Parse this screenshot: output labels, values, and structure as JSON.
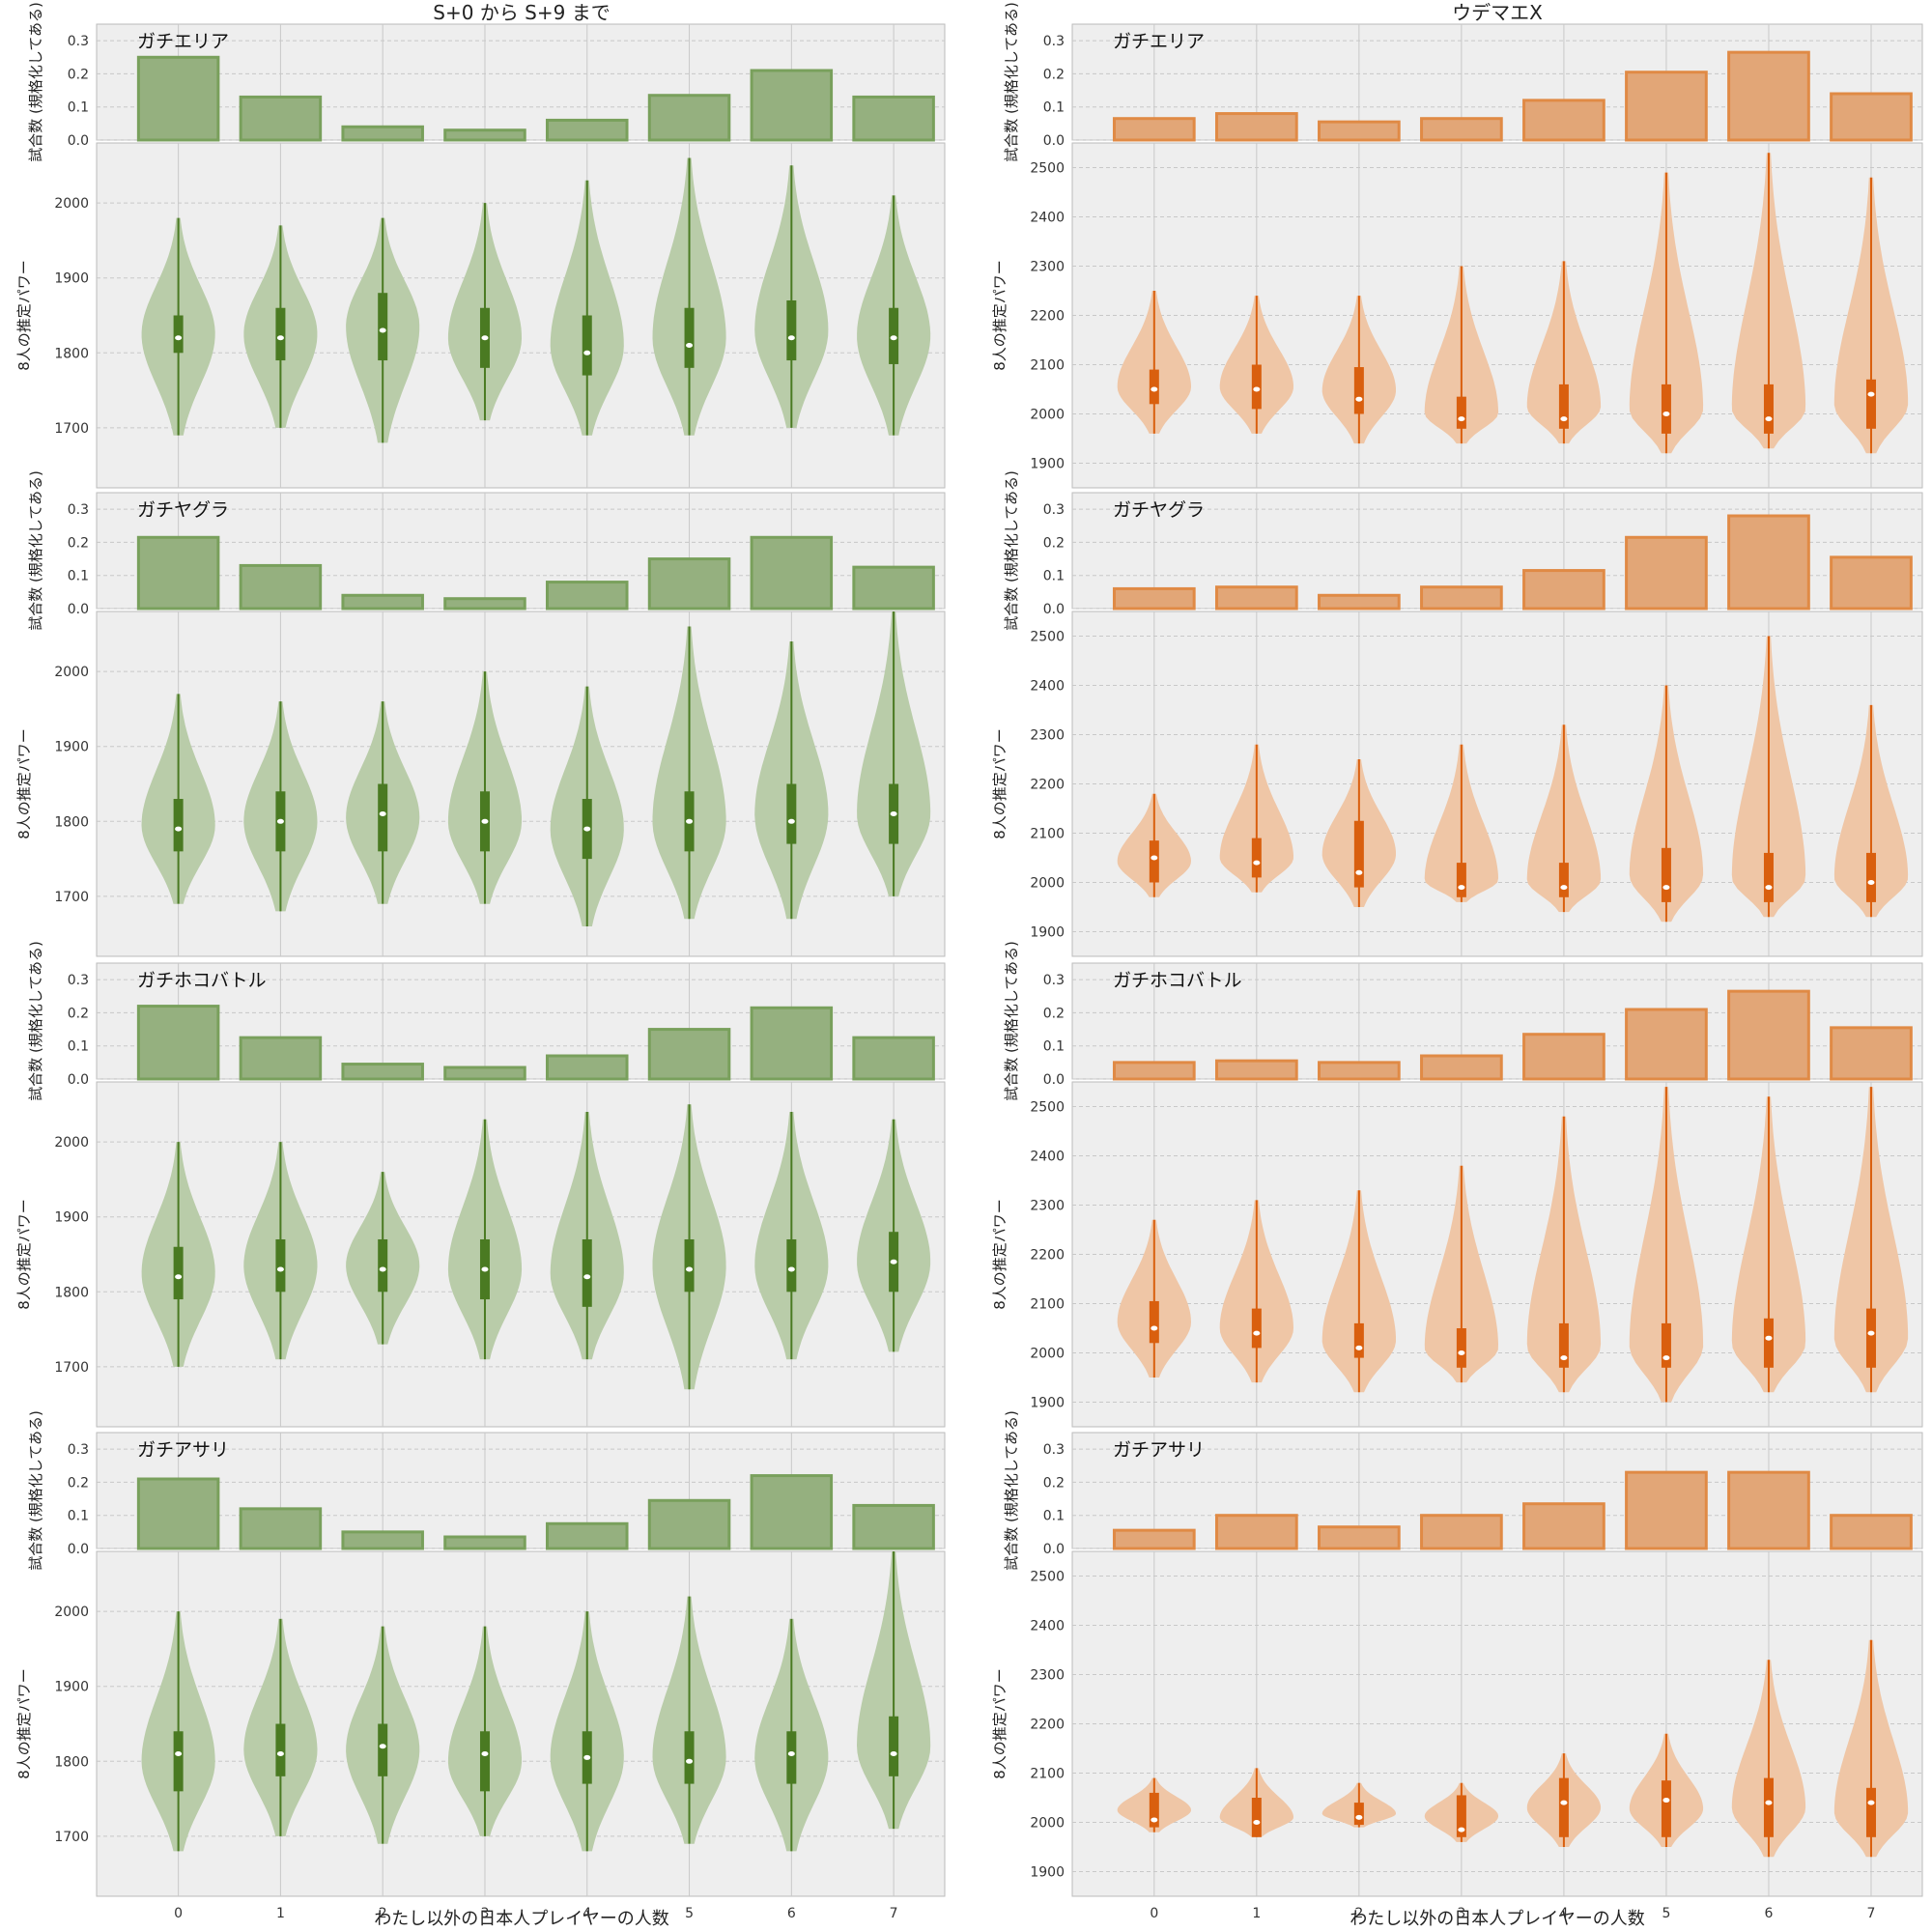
{
  "column_titles": [
    "S+0 から S+9 まで",
    "ウデマエX"
  ],
  "xlabel": "わたし以外の日本人プレイヤーの人数",
  "bar_ylabel": "試合数 (規格化してある)",
  "violin_ylabel": "8人の推定パワー",
  "colors": {
    "green_bar": "#95b07f",
    "green_bar_edge": "#79a05c",
    "green_violin": "#b9cca9",
    "green_dark": "#4a7a22",
    "orange_bar": "#e2a677",
    "orange_bar_edge": "#e08a45",
    "orange_violin": "#efc6a6",
    "orange_dark": "#d95f0e",
    "panel_bg": "#eeeeee",
    "grid": "#c8c8c8"
  },
  "chart_data": [
    {
      "column": "S+0 から S+9 まで",
      "mode": "ガチエリア",
      "type": "bar+violin",
      "categories": [
        0,
        1,
        2,
        3,
        4,
        5,
        6,
        7
      ],
      "bar_values": [
        0.25,
        0.13,
        0.04,
        0.03,
        0.06,
        0.135,
        0.21,
        0.13
      ],
      "bar_ylim": [
        0,
        0.35
      ],
      "bar_yticks": [
        0.0,
        0.1,
        0.2,
        0.3
      ],
      "violin_ylim": [
        1620,
        2080
      ],
      "violin_yticks": [
        1700,
        1800,
        1900,
        2000
      ],
      "violins": [
        {
          "min": 1690,
          "q1": 1800,
          "median": 1820,
          "q3": 1850,
          "max": 1980
        },
        {
          "min": 1700,
          "q1": 1790,
          "median": 1820,
          "q3": 1860,
          "max": 1970
        },
        {
          "min": 1680,
          "q1": 1790,
          "median": 1830,
          "q3": 1880,
          "max": 1980
        },
        {
          "min": 1710,
          "q1": 1780,
          "median": 1820,
          "q3": 1860,
          "max": 2000
        },
        {
          "min": 1690,
          "q1": 1770,
          "median": 1800,
          "q3": 1850,
          "max": 2030
        },
        {
          "min": 1690,
          "q1": 1780,
          "median": 1810,
          "q3": 1860,
          "max": 2060
        },
        {
          "min": 1700,
          "q1": 1790,
          "median": 1820,
          "q3": 1870,
          "max": 2050
        },
        {
          "min": 1690,
          "q1": 1785,
          "median": 1820,
          "q3": 1860,
          "max": 2010
        }
      ]
    },
    {
      "column": "ウデマエX",
      "mode": "ガチエリア",
      "type": "bar+violin",
      "categories": [
        0,
        1,
        2,
        3,
        4,
        5,
        6,
        7
      ],
      "bar_values": [
        0.065,
        0.08,
        0.055,
        0.065,
        0.12,
        0.205,
        0.265,
        0.14
      ],
      "bar_ylim": [
        0,
        0.35
      ],
      "bar_yticks": [
        0.0,
        0.1,
        0.2,
        0.3
      ],
      "violin_ylim": [
        1850,
        2550
      ],
      "violin_yticks": [
        1900,
        2000,
        2100,
        2200,
        2300,
        2400,
        2500
      ],
      "violins": [
        {
          "min": 1960,
          "q1": 2020,
          "median": 2050,
          "q3": 2090,
          "max": 2250
        },
        {
          "min": 1960,
          "q1": 2010,
          "median": 2050,
          "q3": 2100,
          "max": 2240
        },
        {
          "min": 1940,
          "q1": 2000,
          "median": 2030,
          "q3": 2095,
          "max": 2240
        },
        {
          "min": 1940,
          "q1": 1970,
          "median": 1990,
          "q3": 2035,
          "max": 2300
        },
        {
          "min": 1940,
          "q1": 1970,
          "median": 1990,
          "q3": 2060,
          "max": 2310
        },
        {
          "min": 1920,
          "q1": 1960,
          "median": 2000,
          "q3": 2060,
          "max": 2490
        },
        {
          "min": 1930,
          "q1": 1960,
          "median": 1990,
          "q3": 2060,
          "max": 2530
        },
        {
          "min": 1920,
          "q1": 1970,
          "median": 2040,
          "q3": 2070,
          "max": 2480
        }
      ]
    },
    {
      "column": "S+0 から S+9 まで",
      "mode": "ガチヤグラ",
      "type": "bar+violin",
      "categories": [
        0,
        1,
        2,
        3,
        4,
        5,
        6,
        7
      ],
      "bar_values": [
        0.215,
        0.13,
        0.04,
        0.03,
        0.08,
        0.15,
        0.215,
        0.125
      ],
      "bar_ylim": [
        0,
        0.35
      ],
      "bar_yticks": [
        0.0,
        0.1,
        0.2,
        0.3
      ],
      "violin_ylim": [
        1620,
        2080
      ],
      "violin_yticks": [
        1700,
        1800,
        1900,
        2000
      ],
      "violins": [
        {
          "min": 1690,
          "q1": 1760,
          "median": 1790,
          "q3": 1830,
          "max": 1970
        },
        {
          "min": 1680,
          "q1": 1760,
          "median": 1800,
          "q3": 1840,
          "max": 1960
        },
        {
          "min": 1690,
          "q1": 1760,
          "median": 1810,
          "q3": 1850,
          "max": 1960
        },
        {
          "min": 1690,
          "q1": 1760,
          "median": 1800,
          "q3": 1840,
          "max": 2000
        },
        {
          "min": 1660,
          "q1": 1750,
          "median": 1790,
          "q3": 1830,
          "max": 1980
        },
        {
          "min": 1670,
          "q1": 1760,
          "median": 1800,
          "q3": 1840,
          "max": 2060
        },
        {
          "min": 1670,
          "q1": 1770,
          "median": 1800,
          "q3": 1850,
          "max": 2040
        },
        {
          "min": 1700,
          "q1": 1770,
          "median": 1810,
          "q3": 1850,
          "max": 2080
        }
      ]
    },
    {
      "column": "ウデマエX",
      "mode": "ガチヤグラ",
      "type": "bar+violin",
      "categories": [
        0,
        1,
        2,
        3,
        4,
        5,
        6,
        7
      ],
      "bar_values": [
        0.06,
        0.065,
        0.04,
        0.065,
        0.115,
        0.215,
        0.28,
        0.155
      ],
      "bar_ylim": [
        0,
        0.35
      ],
      "bar_yticks": [
        0.0,
        0.1,
        0.2,
        0.3
      ],
      "violin_ylim": [
        1850,
        2550
      ],
      "violin_yticks": [
        1900,
        2000,
        2100,
        2200,
        2300,
        2400,
        2500
      ],
      "violins": [
        {
          "min": 1970,
          "q1": 2000,
          "median": 2050,
          "q3": 2085,
          "max": 2180
        },
        {
          "min": 1980,
          "q1": 2010,
          "median": 2040,
          "q3": 2090,
          "max": 2280
        },
        {
          "min": 1950,
          "q1": 1990,
          "median": 2020,
          "q3": 2125,
          "max": 2250
        },
        {
          "min": 1960,
          "q1": 1970,
          "median": 1990,
          "q3": 2040,
          "max": 2280
        },
        {
          "min": 1940,
          "q1": 1970,
          "median": 1990,
          "q3": 2040,
          "max": 2320
        },
        {
          "min": 1920,
          "q1": 1960,
          "median": 1990,
          "q3": 2070,
          "max": 2400
        },
        {
          "min": 1930,
          "q1": 1960,
          "median": 1990,
          "q3": 2060,
          "max": 2500
        },
        {
          "min": 1930,
          "q1": 1960,
          "median": 2000,
          "q3": 2060,
          "max": 2360
        }
      ]
    },
    {
      "column": "S+0 から S+9 まで",
      "mode": "ガチホコバトル",
      "type": "bar+violin",
      "categories": [
        0,
        1,
        2,
        3,
        4,
        5,
        6,
        7
      ],
      "bar_values": [
        0.22,
        0.125,
        0.045,
        0.035,
        0.07,
        0.15,
        0.215,
        0.125
      ],
      "bar_ylim": [
        0,
        0.35
      ],
      "bar_yticks": [
        0.0,
        0.1,
        0.2,
        0.3
      ],
      "violin_ylim": [
        1620,
        2080
      ],
      "violin_yticks": [
        1700,
        1800,
        1900,
        2000
      ],
      "violins": [
        {
          "min": 1700,
          "q1": 1790,
          "median": 1820,
          "q3": 1860,
          "max": 2000
        },
        {
          "min": 1710,
          "q1": 1800,
          "median": 1830,
          "q3": 1870,
          "max": 2000
        },
        {
          "min": 1730,
          "q1": 1800,
          "median": 1830,
          "q3": 1870,
          "max": 1960
        },
        {
          "min": 1710,
          "q1": 1790,
          "median": 1830,
          "q3": 1870,
          "max": 2030
        },
        {
          "min": 1710,
          "q1": 1780,
          "median": 1820,
          "q3": 1870,
          "max": 2040
        },
        {
          "min": 1670,
          "q1": 1800,
          "median": 1830,
          "q3": 1870,
          "max": 2050
        },
        {
          "min": 1710,
          "q1": 1800,
          "median": 1830,
          "q3": 1870,
          "max": 2040
        },
        {
          "min": 1720,
          "q1": 1800,
          "median": 1840,
          "q3": 1880,
          "max": 2030
        }
      ]
    },
    {
      "column": "ウデマエX",
      "mode": "ガチホコバトル",
      "type": "bar+violin",
      "categories": [
        0,
        1,
        2,
        3,
        4,
        5,
        6,
        7
      ],
      "bar_values": [
        0.05,
        0.055,
        0.05,
        0.07,
        0.135,
        0.21,
        0.265,
        0.155
      ],
      "bar_ylim": [
        0,
        0.35
      ],
      "bar_yticks": [
        0.0,
        0.1,
        0.2,
        0.3
      ],
      "violin_ylim": [
        1850,
        2550
      ],
      "violin_yticks": [
        1900,
        2000,
        2100,
        2200,
        2300,
        2400,
        2500
      ],
      "violins": [
        {
          "min": 1950,
          "q1": 2020,
          "median": 2050,
          "q3": 2105,
          "max": 2270
        },
        {
          "min": 1940,
          "q1": 2010,
          "median": 2040,
          "q3": 2090,
          "max": 2310
        },
        {
          "min": 1920,
          "q1": 1990,
          "median": 2010,
          "q3": 2060,
          "max": 2330
        },
        {
          "min": 1940,
          "q1": 1970,
          "median": 2000,
          "q3": 2050,
          "max": 2380
        },
        {
          "min": 1920,
          "q1": 1970,
          "median": 1990,
          "q3": 2060,
          "max": 2480
        },
        {
          "min": 1900,
          "q1": 1970,
          "median": 1990,
          "q3": 2060,
          "max": 2540
        },
        {
          "min": 1920,
          "q1": 1970,
          "median": 2030,
          "q3": 2070,
          "max": 2520
        },
        {
          "min": 1920,
          "q1": 1970,
          "median": 2040,
          "q3": 2090,
          "max": 2540
        }
      ]
    },
    {
      "column": "S+0 から S+9 まで",
      "mode": "ガチアサリ",
      "type": "bar+violin",
      "categories": [
        0,
        1,
        2,
        3,
        4,
        5,
        6,
        7
      ],
      "bar_values": [
        0.21,
        0.12,
        0.05,
        0.035,
        0.075,
        0.145,
        0.22,
        0.13
      ],
      "bar_ylim": [
        0,
        0.35
      ],
      "bar_yticks": [
        0.0,
        0.1,
        0.2,
        0.3
      ],
      "violin_ylim": [
        1620,
        2080
      ],
      "violin_yticks": [
        1700,
        1800,
        1900,
        2000
      ],
      "violins": [
        {
          "min": 1680,
          "q1": 1760,
          "median": 1810,
          "q3": 1840,
          "max": 2000
        },
        {
          "min": 1700,
          "q1": 1780,
          "median": 1810,
          "q3": 1850,
          "max": 1990
        },
        {
          "min": 1690,
          "q1": 1780,
          "median": 1820,
          "q3": 1850,
          "max": 1980
        },
        {
          "min": 1700,
          "q1": 1760,
          "median": 1810,
          "q3": 1840,
          "max": 1980
        },
        {
          "min": 1680,
          "q1": 1770,
          "median": 1805,
          "q3": 1840,
          "max": 2000
        },
        {
          "min": 1690,
          "q1": 1770,
          "median": 1800,
          "q3": 1840,
          "max": 2020
        },
        {
          "min": 1680,
          "q1": 1770,
          "median": 1810,
          "q3": 1840,
          "max": 1990
        },
        {
          "min": 1710,
          "q1": 1780,
          "median": 1810,
          "q3": 1860,
          "max": 2080
        }
      ]
    },
    {
      "column": "ウデマエX",
      "mode": "ガチアサリ",
      "type": "bar+violin",
      "categories": [
        0,
        1,
        2,
        3,
        4,
        5,
        6,
        7
      ],
      "bar_values": [
        0.055,
        0.1,
        0.065,
        0.1,
        0.135,
        0.23,
        0.23,
        0.1
      ],
      "bar_ylim": [
        0,
        0.35
      ],
      "bar_yticks": [
        0.0,
        0.1,
        0.2,
        0.3
      ],
      "violin_ylim": [
        1850,
        2550
      ],
      "violin_yticks": [
        1900,
        2000,
        2100,
        2200,
        2300,
        2400,
        2500
      ],
      "violins": [
        {
          "min": 1980,
          "q1": 1990,
          "median": 2005,
          "q3": 2060,
          "max": 2090
        },
        {
          "min": 1970,
          "q1": 1970,
          "median": 2000,
          "q3": 2050,
          "max": 2110
        },
        {
          "min": 1990,
          "q1": 1995,
          "median": 2010,
          "q3": 2040,
          "max": 2080
        },
        {
          "min": 1960,
          "q1": 1970,
          "median": 1985,
          "q3": 2055,
          "max": 2080
        },
        {
          "min": 1950,
          "q1": 1970,
          "median": 2040,
          "q3": 2090,
          "max": 2140
        },
        {
          "min": 1950,
          "q1": 1970,
          "median": 2045,
          "q3": 2085,
          "max": 2180
        },
        {
          "min": 1930,
          "q1": 1970,
          "median": 2040,
          "q3": 2090,
          "max": 2330
        },
        {
          "min": 1930,
          "q1": 1970,
          "median": 2040,
          "q3": 2070,
          "max": 2370
        }
      ]
    }
  ]
}
